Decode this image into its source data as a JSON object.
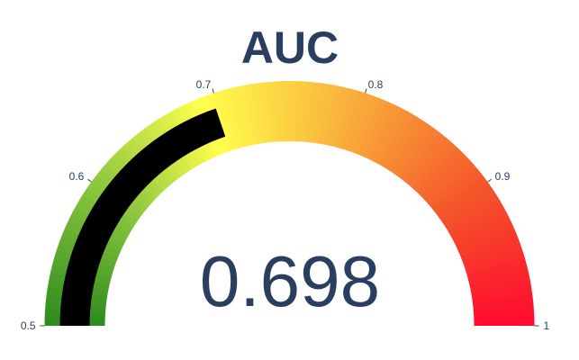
{
  "chart_data": {
    "type": "gauge",
    "title": "AUC",
    "value": 0.698,
    "value_label": "0.698",
    "range": [
      0.5,
      1
    ],
    "ticks": [
      {
        "value": 0.5,
        "label": "0.5"
      },
      {
        "value": 0.6,
        "label": "0.6"
      },
      {
        "value": 0.7,
        "label": "0.7"
      },
      {
        "value": 0.8,
        "label": "0.8"
      },
      {
        "value": 0.9,
        "label": "0.9"
      },
      {
        "value": 1,
        "label": "1"
      }
    ],
    "color_scale": [
      {
        "stop": 0.0,
        "color": "#2d8a1e"
      },
      {
        "stop": 0.2,
        "color": "#8cc63f"
      },
      {
        "stop": 0.38,
        "color": "#ffff4d"
      },
      {
        "stop": 0.6,
        "color": "#f9a93a"
      },
      {
        "stop": 0.8,
        "color": "#f4562a"
      },
      {
        "stop": 1.0,
        "color": "#ff0a2e"
      }
    ],
    "bar_color": "#000000"
  }
}
